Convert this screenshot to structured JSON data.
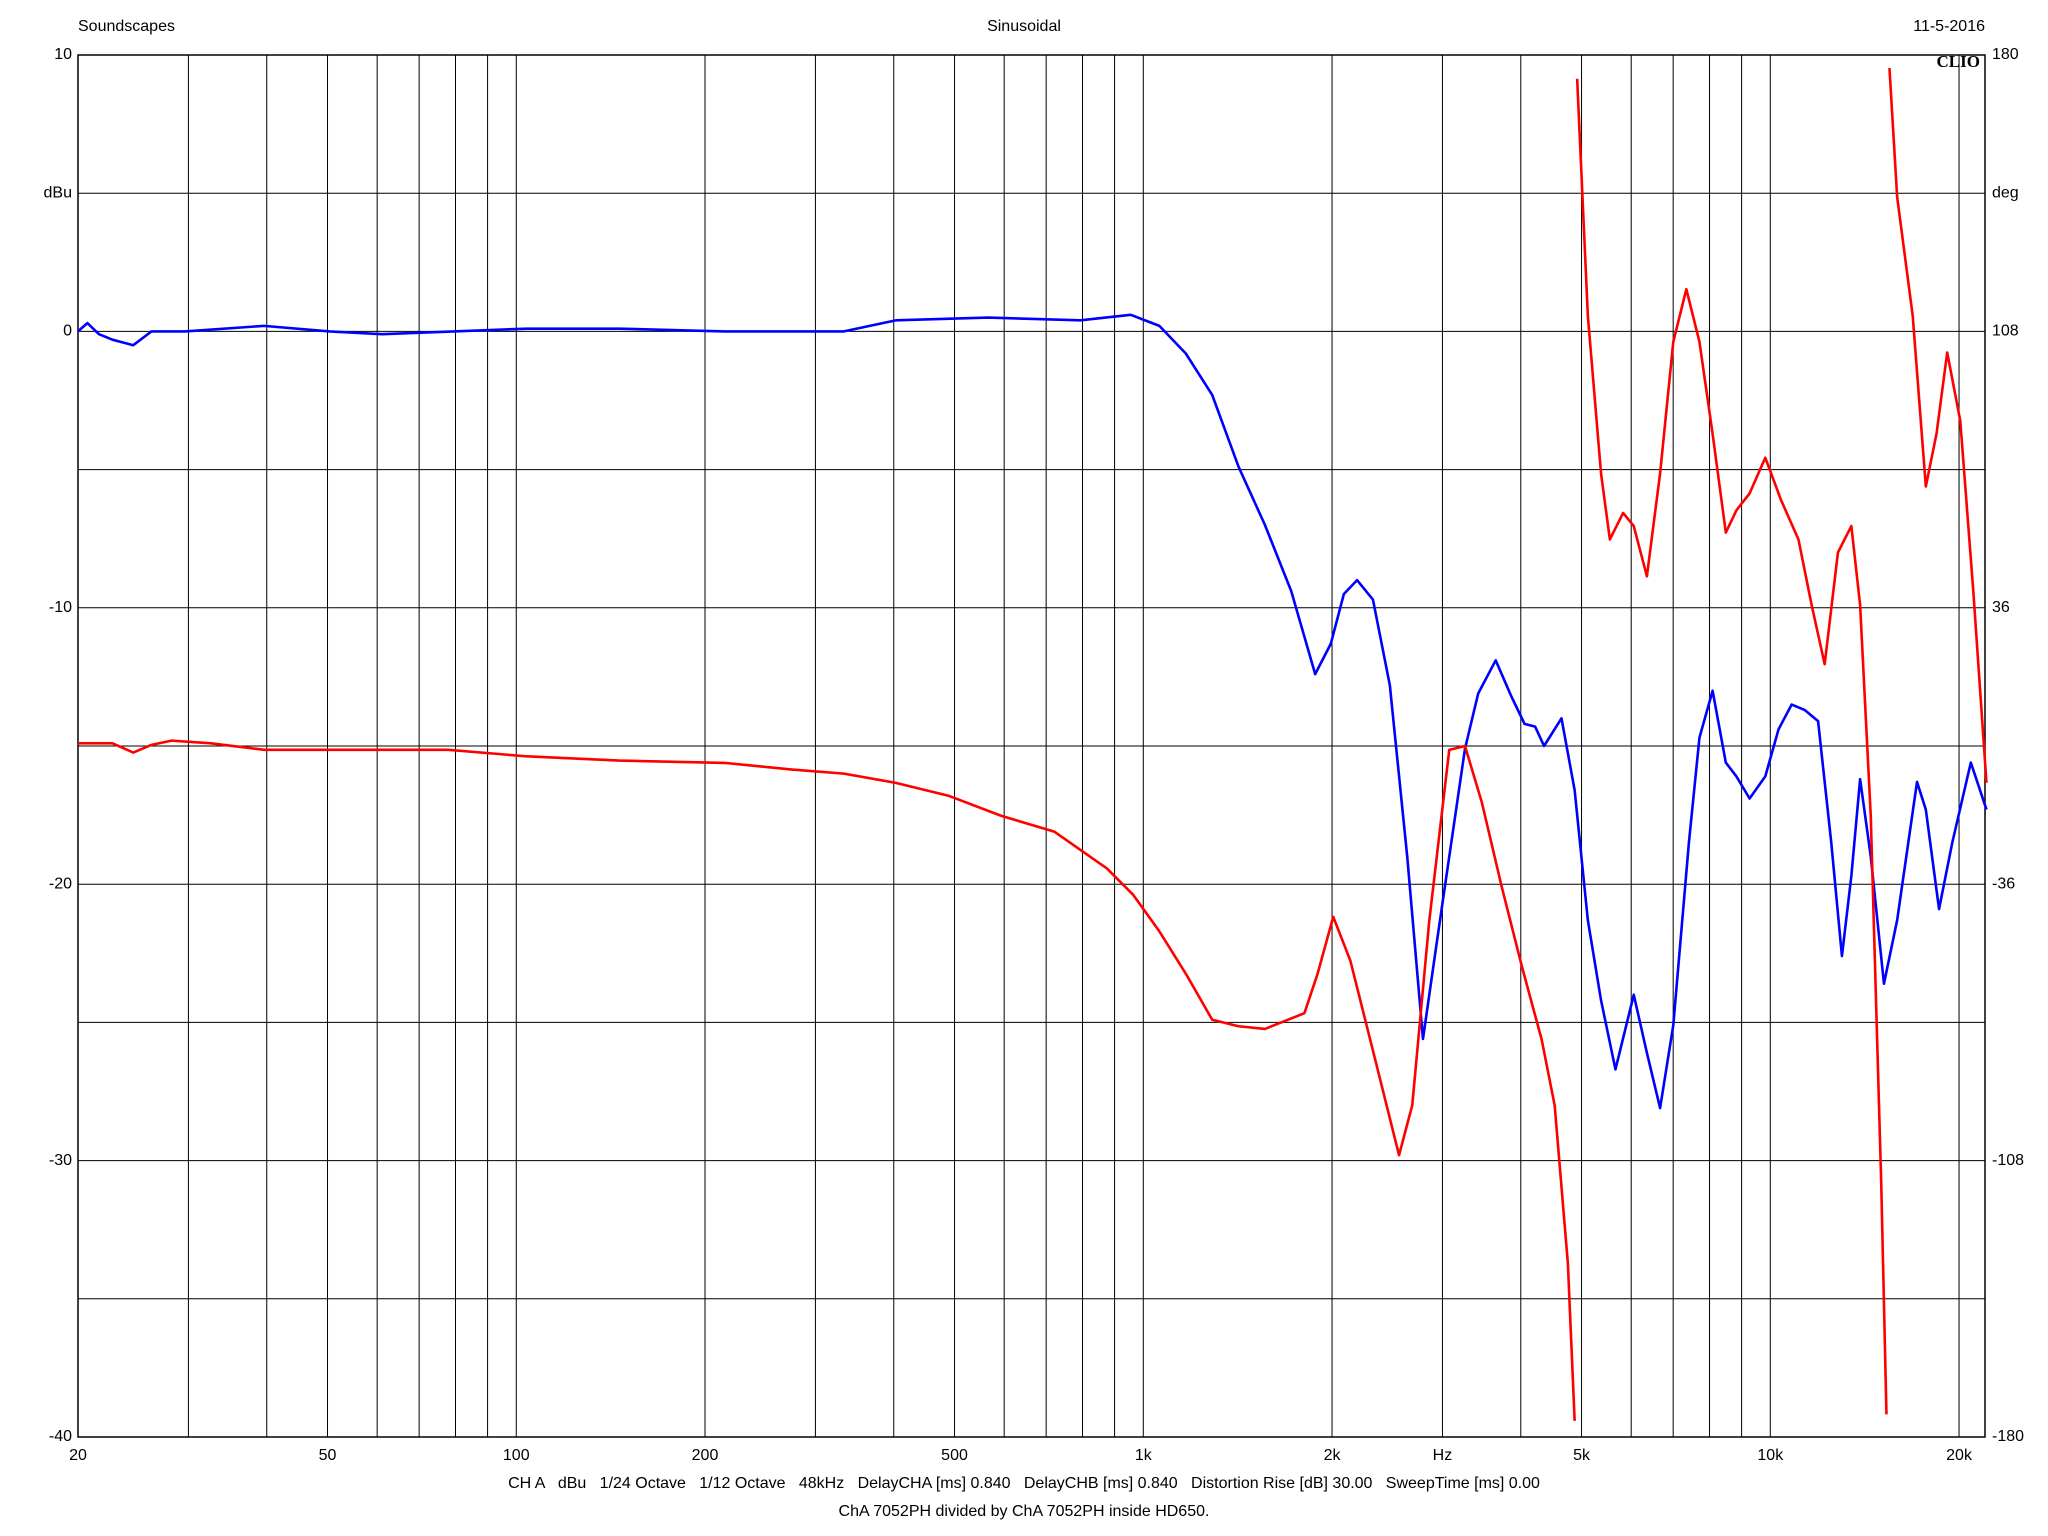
{
  "chart_data": {
    "type": "line",
    "title": "Sinusoidal",
    "header_left": "Soundscapes",
    "header_right": "11-5-2016",
    "brand": "CLIO",
    "footer_lines": [
      "CH A   dBu   1/24 Octave   1/12 Octave   48kHz   DelayCHA [ms] 0.840   DelayCHB [ms] 0.840   Distortion Rise [dB] 30.00   SweepTime [ms] 0.00",
      "ChA 7052PH divided by ChA 7052PH inside HD650."
    ],
    "x_unit_label": {
      "value": 3000,
      "label": "Hz"
    },
    "y_unit_label": {
      "value": 5,
      "label": "dBu"
    },
    "y2_unit_label": {
      "value": 144,
      "label": "deg"
    },
    "xscale": "log",
    "xlim": [
      20,
      22000
    ],
    "xticks": [
      20,
      50,
      100,
      200,
      500,
      {
        "value": 1000,
        "label": "1k"
      },
      {
        "value": 2000,
        "label": "2k"
      },
      {
        "value": 5000,
        "label": "5k"
      },
      {
        "value": 10000,
        "label": "10k"
      },
      {
        "value": 20000,
        "label": "20k"
      }
    ],
    "xgrid": [
      20,
      30,
      40,
      50,
      60,
      70,
      80,
      90,
      100,
      200,
      300,
      400,
      500,
      600,
      700,
      800,
      900,
      1000,
      2000,
      3000,
      4000,
      5000,
      6000,
      7000,
      8000,
      9000,
      10000,
      20000
    ],
    "ylim": [
      -40,
      10
    ],
    "yticks": [
      10,
      0,
      -10,
      -20,
      -30,
      -40
    ],
    "ygrid": [
      10,
      5,
      0,
      -5,
      -10,
      -15,
      -20,
      -25,
      -30,
      -35,
      -40
    ],
    "y2lim": [
      -180,
      180
    ],
    "y2ticks": [
      180,
      108,
      36,
      -36,
      -108,
      -180
    ],
    "grid": true,
    "series": [
      {
        "color": "#0000ff",
        "axis": "y",
        "x": [
          20,
          20.7,
          21.6,
          22.7,
          24.5,
          26.2,
          29.6,
          39.6,
          50.4,
          61.1,
          104,
          146,
          215,
          333,
          403,
          566,
          794,
          955,
          1061,
          1169,
          1288,
          1419,
          1563,
          1722,
          1880,
          1991,
          2089,
          2193,
          2324,
          2473,
          2636,
          2793,
          2930,
          3076,
          3259,
          3421,
          3648,
          3863,
          4056,
          4217,
          4357,
          4645,
          4875,
          5117,
          5371,
          5663,
          6057,
          6356,
          6672,
          7003,
          7416,
          7709,
          8091,
          8493,
          8830,
          9268,
          9818,
          10306,
          10817,
          11354,
          11918,
          12510,
          13009,
          13467,
          13908,
          14462,
          15180,
          15934,
          17140,
          17703,
          18584,
          19507,
          20884,
          22120
        ],
        "values": [
          0,
          0.3,
          -0.1,
          -0.3,
          -0.5,
          0,
          0,
          0.2,
          0,
          -0.1,
          0.1,
          0.1,
          0,
          0,
          0.4,
          0.5,
          0.4,
          0.6,
          0.2,
          -0.8,
          -2.3,
          -4.9,
          -7.0,
          -9.4,
          -12.4,
          -11.3,
          -9.5,
          -9.0,
          -9.7,
          -12.8,
          -19.0,
          -25.6,
          -22.3,
          -19.0,
          -15.1,
          -13.1,
          -11.9,
          -13.2,
          -14.2,
          -14.3,
          -15.0,
          -14.0,
          -16.6,
          -21.3,
          -24.2,
          -26.7,
          -24.0,
          -26.1,
          -28.1,
          -25.1,
          -18.5,
          -14.7,
          -13.0,
          -15.6,
          -16.1,
          -16.9,
          -16.1,
          -14.4,
          -13.5,
          -13.7,
          -14.1,
          -18.5,
          -22.6,
          -19.7,
          -16.2,
          -19.0,
          -23.6,
          -21.3,
          -16.3,
          -17.3,
          -20.9,
          -18.5,
          -15.6,
          -17.3
        ]
      },
      {
        "color": "#ff0000",
        "axis": "y2",
        "x": [
          20,
          22.7,
          24.5,
          26.2,
          28.2,
          32.6,
          39.6,
          50.4,
          77.9,
          104,
          146,
          215,
          274,
          333,
          403,
          490,
          594,
          721,
          875,
          964,
          1061,
          1169,
          1288,
          1419,
          1563,
          1807,
          1897,
          2009,
          2139,
          2357,
          2558,
          2685,
          2858,
          3076,
          3259,
          3467,
          3734,
          4019,
          4318,
          4530,
          4755,
          4875,
          4900,
          4920,
          5117,
          5371,
          5548,
          5825,
          6057,
          6356,
          6672,
          7003,
          7347,
          7709,
          8091,
          8493,
          8830,
          9268,
          9818,
          10400,
          11090,
          11640,
          12210,
          12820,
          13467,
          13908,
          14462,
          15030,
          15320,
          15400,
          15490,
          15934,
          16870,
          17703,
          18410,
          19150,
          20090,
          21080,
          22120
        ],
        "values": [
          0.7,
          0.7,
          -1.7,
          0.3,
          1.4,
          0.7,
          -1.0,
          -1.0,
          -1.0,
          -2.7,
          -3.8,
          -4.4,
          -6.1,
          -7.2,
          -9.6,
          -13.0,
          -18.2,
          -22.3,
          -31.9,
          -38.8,
          -48.3,
          -59.3,
          -71.3,
          -73.0,
          -73.7,
          -69.6,
          -59.3,
          -44.5,
          -55.9,
          -83.3,
          -106.6,
          -93.6,
          -45.6,
          -1.0,
          0,
          -14.7,
          -37.0,
          -57.6,
          -76.4,
          -93.6,
          -134.7,
          -175.8,
          null,
          173.8,
          112.1,
          71.0,
          53.8,
          60.7,
          57.3,
          44.2,
          71.0,
          105.3,
          119.0,
          105.3,
          81.3,
          55.6,
          61.4,
          65.8,
          75.1,
          64.1,
          53.8,
          36.7,
          21.3,
          50.4,
          57.3,
          36.7,
          -18.2,
          -114.1,
          -174.1,
          null,
          176.6,
          143.0,
          112.1,
          67.6,
          81.3,
          102.5,
          84.7,
          40.1,
          -9.6
        ]
      }
    ]
  }
}
